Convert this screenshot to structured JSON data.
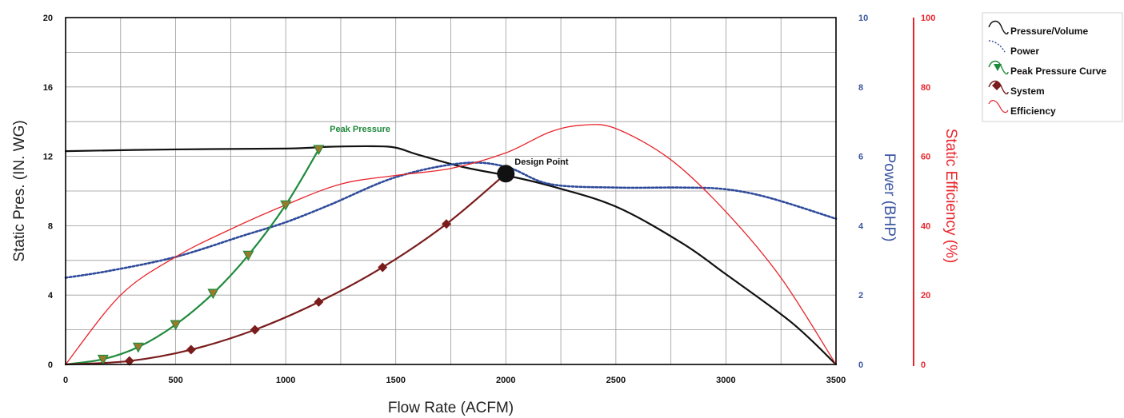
{
  "chart_data": {
    "type": "line",
    "xlabel": "Flow Rate (ACFM)",
    "y_left_label": "Static Pres. (IN. WG)",
    "y_right1_label": "Power (BHP)",
    "y_right2_label": "Static Efficiency (%)",
    "xlim": [
      0,
      3500
    ],
    "x_ticks": [
      "0",
      "500",
      "1000",
      "1500",
      "2000",
      "2500",
      "3000",
      "3500"
    ],
    "ylim_left": [
      0,
      20
    ],
    "y_left_ticks": [
      "0",
      "4",
      "8",
      "12",
      "16",
      "20"
    ],
    "ylim_power": [
      0,
      10
    ],
    "y_power_ticks": [
      "0",
      "2",
      "4",
      "6",
      "8",
      "10"
    ],
    "ylim_efficiency": [
      0,
      100
    ],
    "y_efficiency_ticks": [
      "0",
      "20",
      "40",
      "60",
      "80",
      "100"
    ],
    "grid": true,
    "legend_position": "top-right",
    "colors": {
      "pressure_volume": "#111111",
      "power": "#2e4a9a",
      "peak_pressure": "#1f8a3c",
      "peak_marker": "#9a7a2a",
      "system": "#7a1c1c",
      "efficiency": "#e8242b",
      "grid": "#999999",
      "frame": "#000000",
      "power_axis_text": "#3a55a0",
      "efficiency_axis_text": "#e8242b"
    },
    "series": [
      {
        "name": "Pressure/Volume",
        "axis": "left",
        "style": "solid",
        "x": [
          0,
          500,
          1000,
          1200,
          1400,
          1500,
          1600,
          1800,
          2000,
          2200,
          2500,
          2800,
          3000,
          3300,
          3500
        ],
        "y": [
          12.3,
          12.4,
          12.45,
          12.55,
          12.58,
          12.5,
          12.1,
          11.4,
          10.9,
          10.3,
          9.1,
          7.0,
          5.2,
          2.4,
          0
        ]
      },
      {
        "name": "Power",
        "axis": "power",
        "style": "dotted",
        "x": [
          0,
          200,
          500,
          800,
          1000,
          1200,
          1500,
          1800,
          2000,
          2200,
          2500,
          2800,
          3000,
          3200,
          3500
        ],
        "y": [
          2.5,
          2.7,
          3.1,
          3.7,
          4.1,
          4.6,
          5.4,
          5.8,
          5.7,
          5.2,
          5.1,
          5.1,
          5.05,
          4.8,
          4.2
        ]
      },
      {
        "name": "Peak Pressure Curve",
        "axis": "left",
        "style": "solid",
        "x": [
          0,
          170,
          330,
          500,
          670,
          830,
          1000,
          1150
        ],
        "y": [
          0,
          0.3,
          1.0,
          2.3,
          4.1,
          6.3,
          9.2,
          12.4
        ]
      },
      {
        "name": "System",
        "axis": "left",
        "style": "solid",
        "x": [
          0,
          290,
          570,
          860,
          1150,
          1440,
          1730,
          2000
        ],
        "y": [
          0,
          0.2,
          0.85,
          2.0,
          3.6,
          5.6,
          8.1,
          11.0
        ]
      },
      {
        "name": "Efficiency",
        "axis": "efficiency",
        "style": "solid",
        "x": [
          0,
          250,
          500,
          750,
          1000,
          1250,
          1500,
          1750,
          2000,
          2200,
          2350,
          2500,
          2750,
          3000,
          3250,
          3500
        ],
        "y": [
          0,
          20,
          31,
          39,
          46,
          52,
          54.5,
          56.5,
          61,
          67,
          69,
          68,
          59,
          44,
          25,
          0
        ]
      }
    ],
    "peak_pressure_markers": {
      "x": [
        170,
        330,
        500,
        670,
        830,
        1000,
        1150
      ],
      "y": [
        0.3,
        1.0,
        2.3,
        4.1,
        6.3,
        9.2,
        12.4
      ]
    },
    "system_markers": {
      "x": [
        290,
        570,
        860,
        1150,
        1440,
        1730
      ],
      "y": [
        0.2,
        0.85,
        2.0,
        3.6,
        5.6,
        8.1
      ]
    },
    "annotations": [
      {
        "text": "Peak Pressure",
        "x": 1200,
        "y": 13.6,
        "color": "#1f8a3c"
      },
      {
        "text": "Design Point",
        "x": 2040,
        "y": 11.7,
        "color": "#111111"
      }
    ],
    "design_point": {
      "x": 2000,
      "y": 11.0
    },
    "legend": [
      {
        "key": "pressure_volume",
        "label": "Pressure/Volume"
      },
      {
        "key": "power",
        "label": "Power"
      },
      {
        "key": "peak_pressure",
        "label": "Peak Pressure Curve"
      },
      {
        "key": "system",
        "label": "System"
      },
      {
        "key": "efficiency",
        "label": "Efficiency"
      }
    ]
  }
}
